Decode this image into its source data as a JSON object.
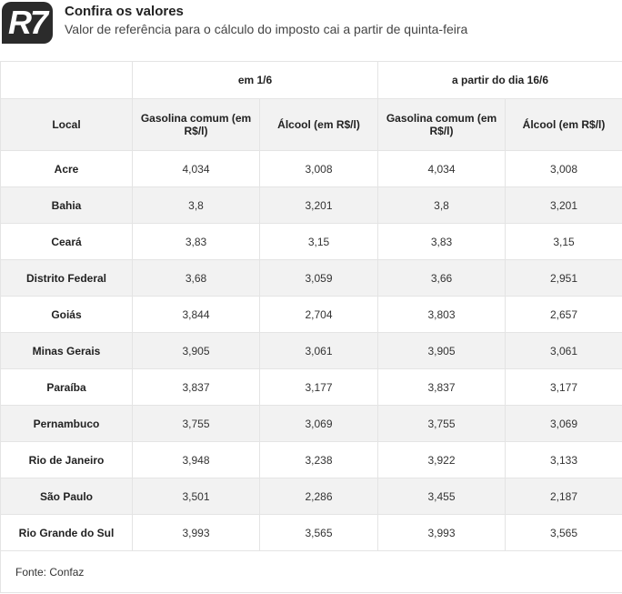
{
  "header": {
    "logo": "R7",
    "title": "Confira os valores",
    "subtitle": "Valor de referência para o cálculo do imposto cai a partir de quinta-feira"
  },
  "table": {
    "groups": [
      "em 1/6",
      "a partir do dia 16/6"
    ],
    "columns": [
      "Local",
      "Gasolina comum (em R$/l)",
      "Álcool (em R$/l)",
      "Gasolina comum (em R$/l)",
      "Álcool (em R$/l)"
    ],
    "rows": [
      [
        "Acre",
        "4,034",
        "3,008",
        "4,034",
        "3,008"
      ],
      [
        "Bahia",
        "3,8",
        "3,201",
        "3,8",
        "3,201"
      ],
      [
        "Ceará",
        "3,83",
        "3,15",
        "3,83",
        "3,15"
      ],
      [
        "Distrito Federal",
        "3,68",
        "3,059",
        "3,66",
        "2,951"
      ],
      [
        "Goiás",
        "3,844",
        "2,704",
        "3,803",
        "2,657"
      ],
      [
        "Minas Gerais",
        "3,905",
        "3,061",
        "3,905",
        "3,061"
      ],
      [
        "Paraíba",
        "3,837",
        "3,177",
        "3,837",
        "3,177"
      ],
      [
        "Pernambuco",
        "3,755",
        "3,069",
        "3,755",
        "3,069"
      ],
      [
        "Rio de Janeiro",
        "3,948",
        "3,238",
        "3,922",
        "3,133"
      ],
      [
        "São Paulo",
        "3,501",
        "2,286",
        "3,455",
        "2,187"
      ],
      [
        "Rio Grande do Sul",
        "3,993",
        "3,565",
        "3,993",
        "3,565"
      ]
    ]
  },
  "footer": "Fonte: Confaz"
}
